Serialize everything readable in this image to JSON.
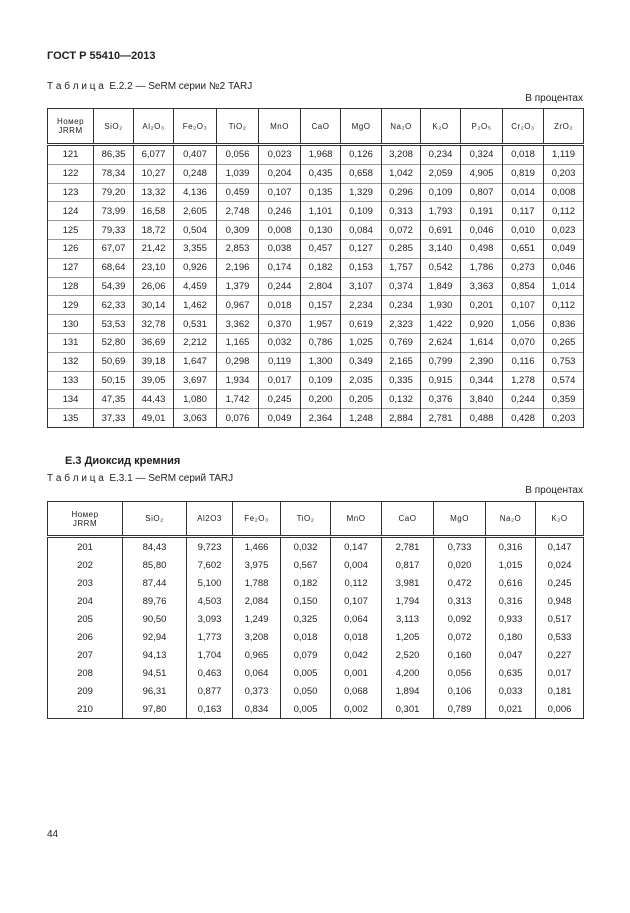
{
  "header": {
    "title": "ГОСТ Р 55410—2013"
  },
  "table1": {
    "caption": "Т а б л и ц а  Е.2.2 — SeRM серии №2 TARJ",
    "unit": "В процентах",
    "columns": [
      "Номер\nJRRM",
      "SiO₂",
      "Al₂O₃",
      "Fe₂O₃",
      "TiO₂",
      "MnO",
      "CaO",
      "MgO",
      "Na₂O",
      "K₂O",
      "P₂O₅",
      "Cr₂O₃",
      "ZrO₂"
    ],
    "rows": [
      [
        "121",
        "86,35",
        "6,077",
        "0,407",
        "0,056",
        "0,023",
        "1,968",
        "0,126",
        "3,208",
        "0,234",
        "0,324",
        "0,018",
        "1,119"
      ],
      [
        "122",
        "78,34",
        "10,27",
        "0,248",
        "1,039",
        "0,204",
        "0,435",
        "0,658",
        "1,042",
        "2,059",
        "4,905",
        "0,819",
        "0,203"
      ],
      [
        "123",
        "79,20",
        "13,32",
        "4,136",
        "0,459",
        "0,107",
        "0,135",
        "1,329",
        "0,296",
        "0,109",
        "0,807",
        "0,014",
        "0,008"
      ],
      [
        "124",
        "73,99",
        "16,58",
        "2,605",
        "2,748",
        "0,246",
        "1,101",
        "0,109",
        "0,313",
        "1,793",
        "0,191",
        "0,117",
        "0,112"
      ],
      [
        "125",
        "79,33",
        "18,72",
        "0,504",
        "0,309",
        "0,008",
        "0,130",
        "0,084",
        "0,072",
        "0,691",
        "0,046",
        "0,010",
        "0,023"
      ],
      [
        "126",
        "67,07",
        "21,42",
        "3,355",
        "2,853",
        "0,038",
        "0,457",
        "0,127",
        "0,285",
        "3,140",
        "0,498",
        "0,651",
        "0,049"
      ],
      [
        "127",
        "68,64",
        "23,10",
        "0,926",
        "2,196",
        "0,174",
        "0,182",
        "0,153",
        "1,757",
        "0,542",
        "1,786",
        "0,273",
        "0,046"
      ],
      [
        "128",
        "54,39",
        "26,06",
        "4,459",
        "1,379",
        "0,244",
        "2,804",
        "3,107",
        "0,374",
        "1,849",
        "3,363",
        "0,854",
        "1,014"
      ],
      [
        "129",
        "62,33",
        "30,14",
        "1,462",
        "0,967",
        "0,018",
        "0,157",
        "2,234",
        "0,234",
        "1,930",
        "0,201",
        "0,107",
        "0,112"
      ],
      [
        "130",
        "53,53",
        "32,78",
        "0,531",
        "3,362",
        "0,370",
        "1,957",
        "0,619",
        "2,323",
        "1,422",
        "0,920",
        "1,056",
        "0,836"
      ],
      [
        "131",
        "52,80",
        "36,69",
        "2,212",
        "1,165",
        "0,032",
        "0,786",
        "1,025",
        "0,769",
        "2,624",
        "1,614",
        "0,070",
        "0,265"
      ],
      [
        "132",
        "50,69",
        "39,18",
        "1,647",
        "0,298",
        "0,119",
        "1,300",
        "0,349",
        "2,165",
        "0,799",
        "2,390",
        "0,116",
        "0,753"
      ],
      [
        "133",
        "50,15",
        "39,05",
        "3,697",
        "1,934",
        "0,017",
        "0,109",
        "2,035",
        "0,335",
        "0,915",
        "0,344",
        "1,278",
        "0,574"
      ],
      [
        "134",
        "47,35",
        "44,43",
        "1,080",
        "1,742",
        "0,245",
        "0,200",
        "0,205",
        "0,132",
        "0,376",
        "3,840",
        "0,244",
        "0,359"
      ],
      [
        "135",
        "37,33",
        "49,01",
        "3,063",
        "0,076",
        "0,049",
        "2,364",
        "1,248",
        "2,884",
        "2,781",
        "0,488",
        "0,428",
        "0,203"
      ]
    ]
  },
  "section": {
    "title": "Е.3 Диоксид кремния"
  },
  "table2": {
    "caption": "Т а б л и ц а  Е.3.1 — SeRM серий TARJ",
    "unit": "В процентах",
    "columns": [
      "Номер\nJRRM",
      "SiO₂",
      "Al2O3",
      "Fe₂O₃",
      "TiO₂",
      "MnO",
      "CaO",
      "MgO",
      "Na₂O",
      "K₂O"
    ],
    "rows": [
      [
        "201",
        "84,43",
        "9,723",
        "1,466",
        "0,032",
        "0,147",
        "2,781",
        "0,733",
        "0,316",
        "0,147"
      ],
      [
        "202",
        "85,80",
        "7,602",
        "3,975",
        "0,567",
        "0,004",
        "0,817",
        "0,020",
        "1,015",
        "0,024"
      ],
      [
        "203",
        "87,44",
        "5,100",
        "1,788",
        "0,182",
        "0,112",
        "3,981",
        "0,472",
        "0,616",
        "0,245"
      ],
      [
        "204",
        "89,76",
        "4,503",
        "2,084",
        "0,150",
        "0,107",
        "1,794",
        "0,313",
        "0,316",
        "0,948"
      ],
      [
        "205",
        "90,50",
        "3,093",
        "1,249",
        "0,325",
        "0,064",
        "3,113",
        "0,092",
        "0,933",
        "0,517"
      ],
      [
        "206",
        "92,94",
        "1,773",
        "3,208",
        "0,018",
        "0,018",
        "1,205",
        "0,072",
        "0,180",
        "0,533"
      ],
      [
        "207",
        "94,13",
        "1,704",
        "0,965",
        "0,079",
        "0,042",
        "2,520",
        "0,160",
        "0,047",
        "0,227"
      ],
      [
        "208",
        "94,51",
        "0,463",
        "0,064",
        "0,005",
        "0,001",
        "4,200",
        "0,056",
        "0,635",
        "0,017"
      ],
      [
        "209",
        "96,31",
        "0,877",
        "0,373",
        "0,050",
        "0,068",
        "1,894",
        "0,106",
        "0,033",
        "0,181"
      ],
      [
        "210",
        "97,80",
        "0,163",
        "0,834",
        "0,005",
        "0,002",
        "0,301",
        "0,789",
        "0,021",
        "0,006"
      ]
    ]
  },
  "footer": {
    "page": "44"
  }
}
